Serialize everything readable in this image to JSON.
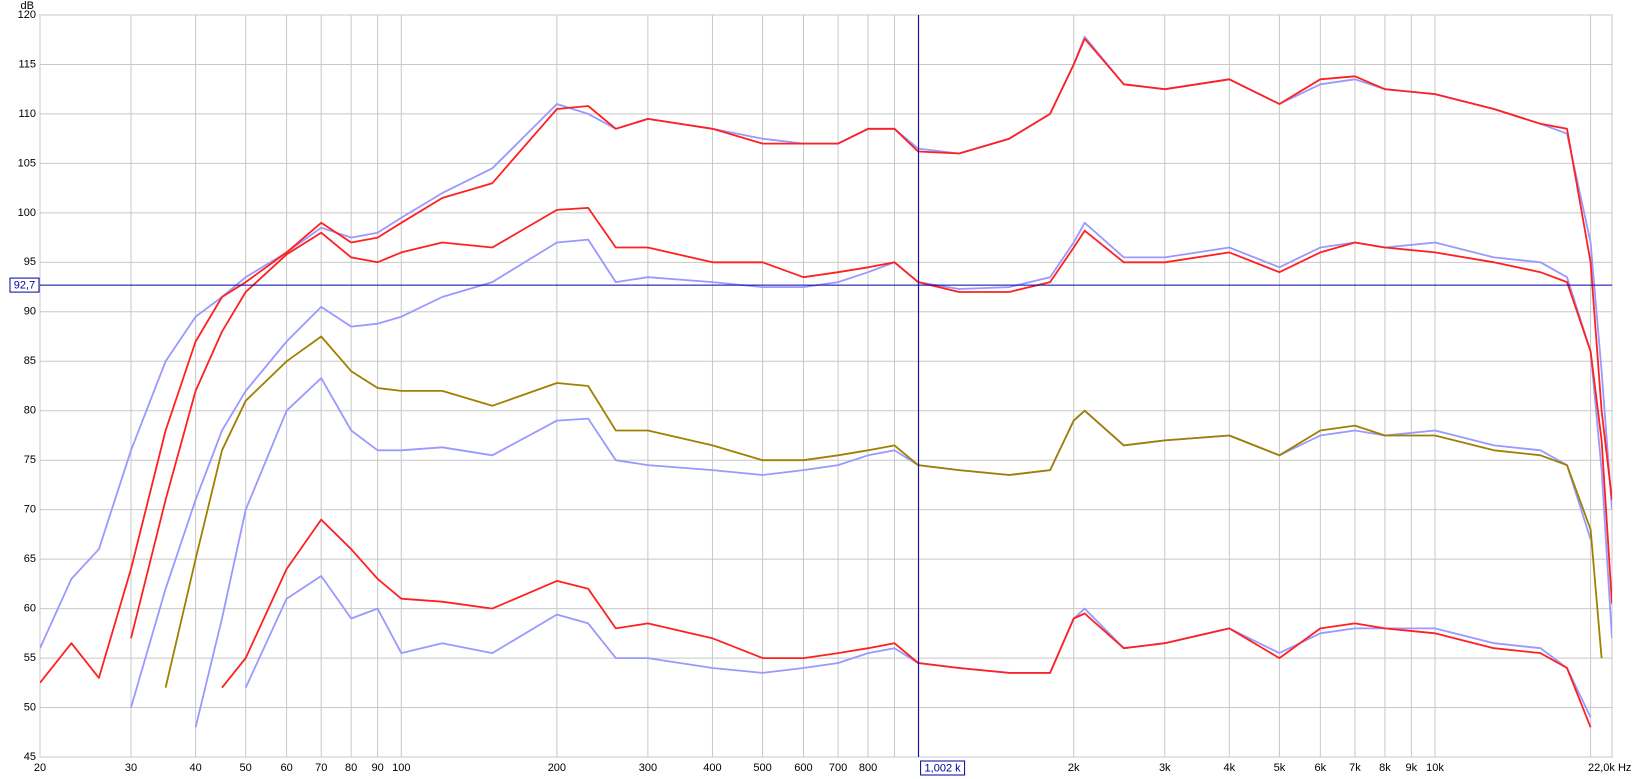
{
  "chart_data": {
    "type": "line",
    "y_label": "dB",
    "log_x": true,
    "grid": true,
    "xlim": [
      20,
      22000
    ],
    "ylim": [
      45,
      120
    ],
    "yticks": [
      45,
      50,
      55,
      60,
      65,
      70,
      75,
      80,
      85,
      90,
      95,
      100,
      105,
      110,
      115,
      120
    ],
    "xticks": [
      20,
      30,
      40,
      50,
      60,
      70,
      80,
      90,
      100,
      200,
      300,
      400,
      500,
      600,
      700,
      800,
      {
        "value": 2000,
        "label": "2k"
      },
      {
        "value": 3000,
        "label": "3k"
      },
      {
        "value": 4000,
        "label": "4k"
      },
      {
        "value": 5000,
        "label": "5k"
      },
      {
        "value": 6000,
        "label": "6k"
      },
      {
        "value": 7000,
        "label": "7k"
      },
      {
        "value": 8000,
        "label": "8k"
      },
      {
        "value": 9000,
        "label": "9k"
      },
      {
        "value": 10000,
        "label": "10k"
      },
      {
        "value": 22000,
        "label": "22,0k Hz"
      }
    ],
    "x_minor_ticks": [
      900,
      1000,
      20000
    ],
    "cursor": {
      "x": {
        "value": 1002,
        "label": "1,002 k"
      },
      "y": {
        "value": 92.7,
        "label": "92,7"
      },
      "color": "#0000a0"
    },
    "x": [
      20,
      23,
      26,
      30,
      35,
      40,
      45,
      50,
      60,
      70,
      80,
      90,
      100,
      120,
      150,
      200,
      230,
      260,
      300,
      400,
      500,
      600,
      700,
      800,
      900,
      1000,
      1200,
      1500,
      1800,
      2000,
      2100,
      2500,
      3000,
      4000,
      5000,
      6000,
      7000,
      8000,
      10000,
      13000,
      16000,
      18000,
      20000,
      21000,
      22000
    ],
    "series": [
      {
        "color": "#9999ff",
        "values": [
          56,
          63,
          66,
          76,
          85,
          89.5,
          91.5,
          93.5,
          96,
          98.5,
          97.5,
          98,
          99.5,
          102,
          104.5,
          111,
          110,
          108.5,
          109.5,
          108.5,
          107.5,
          107,
          107,
          108.5,
          108.5,
          106.5,
          106,
          107.5,
          110,
          115,
          117.8,
          113,
          112.5,
          113.5,
          111,
          113,
          113.5,
          112.5,
          112,
          110.5,
          109,
          108,
          97,
          84,
          70
        ]
      },
      {
        "color": "#ff2020",
        "values": [
          52.5,
          56.5,
          53,
          64,
          78,
          87,
          91.5,
          93,
          96,
          99,
          97,
          97.5,
          99,
          101.5,
          103,
          110.5,
          110.8,
          108.5,
          109.5,
          108.5,
          107,
          107,
          107,
          108.5,
          108.5,
          106.2,
          106,
          107.5,
          110,
          115,
          117.6,
          113,
          112.5,
          113.5,
          111,
          113.5,
          113.8,
          112.5,
          112,
          110.5,
          109,
          108.5,
          95,
          80,
          71
        ]
      },
      {
        "color": "#9999ff",
        "values": [
          null,
          null,
          null,
          50,
          62,
          71,
          78,
          82,
          87,
          90.5,
          88.5,
          88.8,
          89.5,
          91.5,
          93,
          97,
          97.3,
          93,
          93.5,
          93,
          92.5,
          92.5,
          93,
          94,
          95,
          93,
          92.3,
          92.5,
          93.5,
          97,
          99,
          95.5,
          95.5,
          96.5,
          94.5,
          96.5,
          97,
          96.5,
          97,
          95.5,
          95,
          93.5,
          86,
          74,
          57
        ]
      },
      {
        "color": "#ff2020",
        "values": [
          null,
          null,
          null,
          57,
          71,
          82,
          88,
          92,
          95.8,
          98,
          95.5,
          95,
          96,
          97,
          96.5,
          100.3,
          100.5,
          96.5,
          96.5,
          95,
          95,
          93.5,
          94,
          94.5,
          95,
          93,
          92,
          92,
          93,
          96.5,
          98.2,
          95,
          95,
          96,
          94,
          96,
          97,
          96.5,
          96,
          95,
          94,
          93,
          86,
          77,
          60.5
        ]
      },
      {
        "color": "#9999ff",
        "values": [
          null,
          null,
          null,
          null,
          null,
          48,
          59,
          70,
          80,
          83.3,
          78,
          76,
          76,
          76.3,
          75.5,
          79,
          79.2,
          75,
          74.5,
          74,
          73.5,
          74,
          74.5,
          75.5,
          76,
          74.5,
          74,
          73.5,
          74,
          79,
          80,
          76.5,
          77,
          77.5,
          75.5,
          77.5,
          78,
          77.5,
          78,
          76.5,
          76,
          74.5,
          67,
          null,
          null
        ]
      },
      {
        "color": "#a08000",
        "values": [
          null,
          null,
          null,
          null,
          52,
          65,
          76,
          81,
          85,
          87.5,
          84,
          82.3,
          82,
          82,
          80.5,
          82.8,
          82.5,
          78,
          78,
          76.5,
          75,
          75,
          75.5,
          76,
          76.5,
          74.5,
          74,
          73.5,
          74,
          79,
          80,
          76.5,
          77,
          77.5,
          75.5,
          78,
          78.5,
          77.5,
          77.5,
          76,
          75.5,
          74.5,
          68,
          55,
          null
        ]
      },
      {
        "color": "#9999ff",
        "values": [
          null,
          null,
          null,
          null,
          null,
          null,
          null,
          52,
          61,
          63.3,
          59,
          60,
          55.5,
          56.5,
          55.5,
          59.4,
          58.5,
          55,
          55,
          54,
          53.5,
          54,
          54.5,
          55.5,
          56,
          54.5,
          54,
          53.5,
          53.5,
          59,
          60,
          56,
          56.5,
          58,
          55.5,
          57.5,
          58,
          58,
          58,
          56.5,
          56,
          54,
          49,
          null,
          null
        ]
      },
      {
        "color": "#ff2020",
        "values": [
          null,
          null,
          null,
          null,
          null,
          null,
          52,
          55,
          64,
          69,
          66,
          63,
          61,
          60.7,
          60,
          62.8,
          62,
          58,
          58.5,
          57,
          55,
          55,
          55.5,
          56,
          56.5,
          54.5,
          54,
          53.5,
          53.5,
          59,
          59.5,
          56,
          56.5,
          58,
          55,
          58,
          58.5,
          58,
          57.5,
          56,
          55.5,
          54,
          48,
          null,
          null
        ]
      }
    ]
  }
}
